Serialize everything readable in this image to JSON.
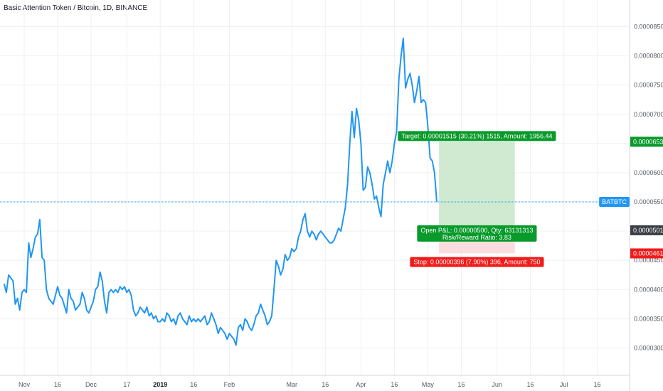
{
  "title": "Basic Attention Token / Bitcoin, 1D, BINANCE",
  "colors": {
    "line": "#2196f3",
    "target_zone": "#c8e6c9",
    "stop_zone": "#fcd7d7",
    "target_badge": "#089a2a",
    "stop_badge": "#f01b1b",
    "current_badge": "#2196f3",
    "entry_badge": "#3a3e45"
  },
  "chart_data": {
    "type": "line",
    "symbol": "BATBTC",
    "ylim": [
      2.6e-06,
      9e-06
    ],
    "y_ticks": [
      "0.00003000",
      "0.00003500",
      "0.00004000",
      "0.00004500",
      "0.00005000",
      "0.00005500",
      "0.00006000",
      "0.00006500",
      "0.00007000",
      "0.00007500",
      "0.00008000",
      "0.00008500"
    ],
    "x_ticks": [
      "Nov",
      "16",
      "Dec",
      "17",
      "2019",
      "16",
      "Feb",
      "Mar",
      "16",
      "Apr",
      "16",
      "May",
      "16",
      "Jun",
      "16",
      "Jul",
      "16"
    ],
    "x_tick_dates": [
      "2018-11-01",
      "2018-11-16",
      "2018-12-01",
      "2018-12-17",
      "2019-01-01",
      "2019-01-16",
      "2019-02-01",
      "2019-03-01",
      "2019-03-16",
      "2019-04-01",
      "2019-04-16",
      "2019-05-01",
      "2019-05-16",
      "2019-06-01",
      "2019-06-16",
      "2019-07-01",
      "2019-07-16"
    ],
    "series": [
      {
        "points": [
          [
            "2018-10-23",
            4.1
          ],
          [
            "2018-10-24",
            3.95
          ],
          [
            "2018-10-25",
            4.25
          ],
          [
            "2018-10-27",
            4.15
          ],
          [
            "2018-10-28",
            3.75
          ],
          [
            "2018-10-29",
            3.85
          ],
          [
            "2018-10-30",
            3.65
          ],
          [
            "2018-10-31",
            3.95
          ],
          [
            "2018-11-01",
            4.0
          ],
          [
            "2018-11-02",
            3.95
          ],
          [
            "2018-11-03",
            4.8
          ],
          [
            "2018-11-04",
            4.55
          ],
          [
            "2018-11-05",
            4.7
          ],
          [
            "2018-11-06",
            4.9
          ],
          [
            "2018-11-07",
            4.95
          ],
          [
            "2018-11-08",
            5.2
          ],
          [
            "2018-11-09",
            4.55
          ],
          [
            "2018-11-10",
            4.5
          ],
          [
            "2018-11-11",
            4.0
          ],
          [
            "2018-11-12",
            3.85
          ],
          [
            "2018-11-14",
            3.75
          ],
          [
            "2018-11-15",
            3.9
          ],
          [
            "2018-11-16",
            4.05
          ],
          [
            "2018-11-17",
            3.9
          ],
          [
            "2018-11-18",
            3.85
          ],
          [
            "2018-11-20",
            3.6
          ],
          [
            "2018-11-21",
            4.0
          ],
          [
            "2018-11-22",
            3.85
          ],
          [
            "2018-11-23",
            3.8
          ],
          [
            "2018-11-24",
            3.65
          ],
          [
            "2018-11-26",
            3.75
          ],
          [
            "2018-11-27",
            3.95
          ],
          [
            "2018-11-28",
            3.85
          ],
          [
            "2018-11-29",
            3.65
          ],
          [
            "2018-11-30",
            3.6
          ],
          [
            "2018-12-02",
            3.8
          ],
          [
            "2018-12-03",
            4.0
          ],
          [
            "2018-12-04",
            4.05
          ],
          [
            "2018-12-05",
            4.3
          ],
          [
            "2018-12-06",
            4.15
          ],
          [
            "2018-12-07",
            3.8
          ],
          [
            "2018-12-08",
            3.6
          ],
          [
            "2018-12-09",
            3.95
          ],
          [
            "2018-12-10",
            4.0
          ],
          [
            "2018-12-11",
            3.95
          ],
          [
            "2018-12-12",
            4.0
          ],
          [
            "2018-12-13",
            3.95
          ],
          [
            "2018-12-14",
            4.05
          ],
          [
            "2018-12-15",
            4.0
          ],
          [
            "2018-12-16",
            4.05
          ],
          [
            "2018-12-17",
            3.95
          ],
          [
            "2018-12-18",
            4.0
          ],
          [
            "2018-12-19",
            3.9
          ],
          [
            "2018-12-20",
            3.65
          ],
          [
            "2018-12-21",
            3.55
          ],
          [
            "2018-12-22",
            3.6
          ],
          [
            "2018-12-23",
            3.7
          ],
          [
            "2018-12-24",
            3.65
          ],
          [
            "2018-12-25",
            3.6
          ],
          [
            "2018-12-26",
            3.7
          ],
          [
            "2018-12-27",
            3.55
          ],
          [
            "2018-12-28",
            3.6
          ],
          [
            "2018-12-29",
            3.5
          ],
          [
            "2018-12-30",
            3.55
          ],
          [
            "2018-12-31",
            3.45
          ],
          [
            "2019-01-01",
            3.45
          ],
          [
            "2019-01-02",
            3.5
          ],
          [
            "2019-01-03",
            3.45
          ],
          [
            "2019-01-04",
            3.6
          ],
          [
            "2019-01-05",
            3.55
          ],
          [
            "2019-01-06",
            3.45
          ],
          [
            "2019-01-07",
            3.5
          ],
          [
            "2019-01-08",
            3.4
          ],
          [
            "2019-01-09",
            3.55
          ],
          [
            "2019-01-10",
            3.6
          ],
          [
            "2019-01-11",
            3.5
          ],
          [
            "2019-01-12",
            3.45
          ],
          [
            "2019-01-13",
            3.4
          ],
          [
            "2019-01-14",
            3.55
          ],
          [
            "2019-01-15",
            3.45
          ],
          [
            "2019-01-16",
            3.5
          ],
          [
            "2019-01-17",
            3.45
          ],
          [
            "2019-01-18",
            3.5
          ],
          [
            "2019-01-19",
            3.45
          ],
          [
            "2019-01-20",
            3.5
          ],
          [
            "2019-01-21",
            3.55
          ],
          [
            "2019-01-22",
            3.4
          ],
          [
            "2019-01-23",
            3.45
          ],
          [
            "2019-01-24",
            3.6
          ],
          [
            "2019-01-25",
            3.5
          ],
          [
            "2019-01-26",
            3.4
          ],
          [
            "2019-01-27",
            3.25
          ],
          [
            "2019-01-28",
            3.35
          ],
          [
            "2019-01-29",
            3.3
          ],
          [
            "2019-01-30",
            3.25
          ],
          [
            "2019-01-31",
            3.15
          ],
          [
            "2019-02-01",
            3.25
          ],
          [
            "2019-02-02",
            3.2
          ],
          [
            "2019-02-03",
            3.15
          ],
          [
            "2019-02-04",
            3.05
          ],
          [
            "2019-02-05",
            3.35
          ],
          [
            "2019-02-06",
            3.4
          ],
          [
            "2019-02-07",
            3.3
          ],
          [
            "2019-02-08",
            3.5
          ],
          [
            "2019-02-09",
            3.45
          ],
          [
            "2019-02-10",
            3.35
          ],
          [
            "2019-02-11",
            3.3
          ],
          [
            "2019-02-12",
            3.4
          ],
          [
            "2019-02-13",
            3.55
          ],
          [
            "2019-02-14",
            3.6
          ],
          [
            "2019-02-15",
            3.75
          ],
          [
            "2019-02-16",
            3.65
          ],
          [
            "2019-02-17",
            3.55
          ],
          [
            "2019-02-18",
            3.4
          ],
          [
            "2019-02-19",
            3.45
          ],
          [
            "2019-02-20",
            3.55
          ],
          [
            "2019-02-21",
            4.0
          ],
          [
            "2019-02-22",
            4.5
          ],
          [
            "2019-02-23",
            4.4
          ],
          [
            "2019-02-24",
            4.25
          ],
          [
            "2019-02-25",
            4.35
          ],
          [
            "2019-02-26",
            4.6
          ],
          [
            "2019-02-27",
            4.5
          ],
          [
            "2019-02-28",
            4.55
          ],
          [
            "2019-03-01",
            4.7
          ],
          [
            "2019-03-02",
            4.65
          ],
          [
            "2019-03-03",
            4.7
          ],
          [
            "2019-03-04",
            4.9
          ],
          [
            "2019-03-05",
            5.0
          ],
          [
            "2019-03-06",
            5.2
          ],
          [
            "2019-03-07",
            5.3
          ],
          [
            "2019-03-08",
            5.0
          ],
          [
            "2019-03-09",
            4.9
          ],
          [
            "2019-03-10",
            5.0
          ],
          [
            "2019-03-11",
            4.95
          ],
          [
            "2019-03-12",
            4.85
          ],
          [
            "2019-03-13",
            4.95
          ],
          [
            "2019-03-14",
            5.0
          ],
          [
            "2019-03-15",
            4.95
          ],
          [
            "2019-03-16",
            4.9
          ],
          [
            "2019-03-17",
            4.85
          ],
          [
            "2019-03-18",
            4.8
          ],
          [
            "2019-03-19",
            4.8
          ],
          [
            "2019-03-20",
            4.85
          ],
          [
            "2019-03-21",
            4.95
          ],
          [
            "2019-03-22",
            5.05
          ],
          [
            "2019-03-23",
            5.0
          ],
          [
            "2019-03-24",
            5.2
          ],
          [
            "2019-03-25",
            5.4
          ],
          [
            "2019-03-26",
            5.8
          ],
          [
            "2019-03-27",
            6.5
          ],
          [
            "2019-03-28",
            7.05
          ],
          [
            "2019-03-29",
            6.6
          ],
          [
            "2019-03-30",
            7.1
          ],
          [
            "2019-03-31",
            6.9
          ],
          [
            "2019-04-01",
            6.5
          ],
          [
            "2019-04-02",
            5.7
          ],
          [
            "2019-04-03",
            5.75
          ],
          [
            "2019-04-04",
            6.1
          ],
          [
            "2019-04-05",
            6.0
          ],
          [
            "2019-04-06",
            5.8
          ],
          [
            "2019-04-07",
            5.55
          ],
          [
            "2019-04-08",
            5.6
          ],
          [
            "2019-04-09",
            5.4
          ],
          [
            "2019-04-10",
            5.25
          ],
          [
            "2019-04-11",
            5.8
          ],
          [
            "2019-04-12",
            6.0
          ],
          [
            "2019-04-13",
            6.2
          ],
          [
            "2019-04-14",
            6.0
          ],
          [
            "2019-04-15",
            6.2
          ],
          [
            "2019-04-16",
            6.5
          ],
          [
            "2019-04-17",
            6.7
          ],
          [
            "2019-04-18",
            7.6
          ],
          [
            "2019-04-19",
            8.0
          ],
          [
            "2019-04-20",
            8.3
          ],
          [
            "2019-04-21",
            7.45
          ],
          [
            "2019-04-22",
            7.6
          ],
          [
            "2019-04-23",
            7.7
          ],
          [
            "2019-04-24",
            7.5
          ],
          [
            "2019-04-25",
            7.2
          ],
          [
            "2019-04-26",
            7.4
          ],
          [
            "2019-04-27",
            7.65
          ],
          [
            "2019-04-28",
            7.2
          ],
          [
            "2019-04-29",
            7.25
          ],
          [
            "2019-04-30",
            7.2
          ],
          [
            "2019-05-01",
            6.8
          ],
          [
            "2019-05-02",
            6.25
          ],
          [
            "2019-05-03",
            6.2
          ],
          [
            "2019-05-04",
            6.0
          ],
          [
            "2019-05-05",
            5.5
          ]
        ]
      }
    ],
    "current_price": {
      "label": "BATBTC",
      "value": 5.5
    },
    "position": {
      "start": "2019-05-06",
      "end": "2019-06-09",
      "target_price": 6.53,
      "entry_price": 5.015,
      "stop_price": 4.619,
      "target_tag": "0.00006530",
      "entry_tag": "0.00005015",
      "stop_tag": "0.00004619",
      "target_label": "Target: 0.00001515 (30.21%) 1515, Amount: 1956.44",
      "pnl_label": "Open P&L: 0.00000500, Qty: 63131313",
      "ratio_label": "Risk/Reward Ratio: 3.83",
      "stop_label": "Stop: 0.00000396 (7.90%) 396, Amount: 750"
    }
  }
}
